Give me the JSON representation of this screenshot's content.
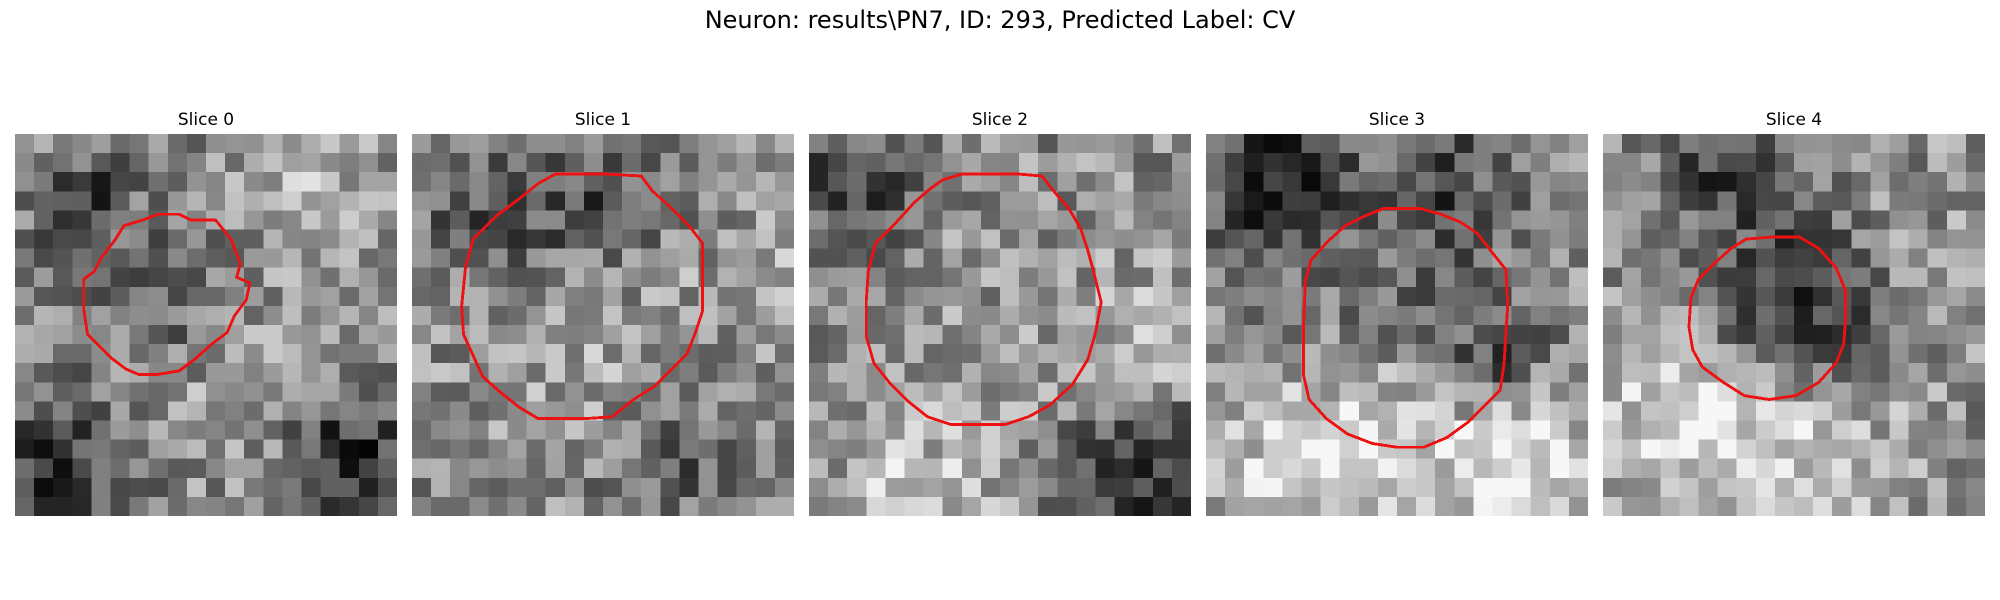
{
  "figure": {
    "title": "Neuron: results\\PN7, ID: 293, Predicted Label: CV"
  },
  "contour_color": "#ee1111",
  "slices": [
    {
      "label": "Slice 0",
      "contour": [
        [
          4.15,
          7.2
        ],
        [
          4.5,
          6.5
        ],
        [
          5.2,
          5.6
        ],
        [
          5.7,
          4.8
        ],
        [
          6.7,
          4.5
        ],
        [
          7.5,
          4.2
        ],
        [
          8.6,
          4.2
        ],
        [
          9.2,
          4.5
        ],
        [
          10.5,
          4.5
        ],
        [
          11.3,
          5.5
        ],
        [
          11.8,
          6.8
        ],
        [
          11.6,
          7.5
        ],
        [
          12.3,
          7.8
        ],
        [
          12.1,
          8.7
        ],
        [
          11.5,
          9.5
        ],
        [
          11.1,
          10.4
        ],
        [
          10.3,
          11.0
        ],
        [
          9.4,
          11.8
        ],
        [
          8.6,
          12.4
        ],
        [
          7.4,
          12.6
        ],
        [
          6.5,
          12.6
        ],
        [
          5.8,
          12.3
        ],
        [
          5.0,
          11.7
        ],
        [
          4.3,
          11.0
        ],
        [
          3.8,
          10.5
        ],
        [
          3.6,
          9.2
        ],
        [
          3.6,
          7.6
        ]
      ]
    },
    {
      "label": "Slice 1",
      "contour": [
        [
          2.8,
          7.0
        ],
        [
          3.2,
          5.5
        ],
        [
          4.4,
          4.3
        ],
        [
          5.6,
          3.4
        ],
        [
          6.6,
          2.6
        ],
        [
          7.5,
          2.1
        ],
        [
          10.2,
          2.1
        ],
        [
          12.0,
          2.2
        ],
        [
          12.6,
          3.0
        ],
        [
          13.5,
          3.8
        ],
        [
          14.5,
          4.8
        ],
        [
          15.2,
          5.7
        ],
        [
          15.2,
          7.4
        ],
        [
          15.2,
          9.3
        ],
        [
          14.8,
          10.5
        ],
        [
          14.4,
          11.5
        ],
        [
          13.6,
          12.3
        ],
        [
          12.7,
          13.2
        ],
        [
          11.6,
          13.9
        ],
        [
          10.5,
          14.8
        ],
        [
          9.1,
          14.9
        ],
        [
          7.8,
          14.9
        ],
        [
          6.6,
          14.9
        ],
        [
          5.6,
          14.3
        ],
        [
          4.6,
          13.5
        ],
        [
          3.7,
          12.7
        ],
        [
          3.2,
          11.6
        ],
        [
          2.7,
          10.5
        ],
        [
          2.6,
          9.0
        ]
      ]
    },
    {
      "label": "Slice 2",
      "contour": [
        [
          3.1,
          7.2
        ],
        [
          3.5,
          5.7
        ],
        [
          4.5,
          4.7
        ],
        [
          5.5,
          3.6
        ],
        [
          6.3,
          2.9
        ],
        [
          7.0,
          2.4
        ],
        [
          8.0,
          2.1
        ],
        [
          11.0,
          2.1
        ],
        [
          12.2,
          2.2
        ],
        [
          12.9,
          3.1
        ],
        [
          13.6,
          3.9
        ],
        [
          14.2,
          4.9
        ],
        [
          14.6,
          6.1
        ],
        [
          14.9,
          7.2
        ],
        [
          15.3,
          8.8
        ],
        [
          15.0,
          10.4
        ],
        [
          14.6,
          11.8
        ],
        [
          13.8,
          13.1
        ],
        [
          12.6,
          14.2
        ],
        [
          11.5,
          14.8
        ],
        [
          10.3,
          15.2
        ],
        [
          8.7,
          15.2
        ],
        [
          7.4,
          15.2
        ],
        [
          6.2,
          14.8
        ],
        [
          5.2,
          14.0
        ],
        [
          4.2,
          13.0
        ],
        [
          3.4,
          12.0
        ],
        [
          3.0,
          10.6
        ],
        [
          3.0,
          8.7
        ]
      ]
    },
    {
      "label": "Slice 3",
      "contour": [
        [
          5.2,
          7.7
        ],
        [
          5.5,
          6.6
        ],
        [
          6.4,
          5.6
        ],
        [
          7.3,
          4.8
        ],
        [
          8.3,
          4.3
        ],
        [
          9.3,
          3.9
        ],
        [
          11.2,
          3.9
        ],
        [
          12.3,
          4.2
        ],
        [
          13.3,
          4.6
        ],
        [
          14.2,
          5.2
        ],
        [
          14.9,
          6.1
        ],
        [
          15.7,
          7.1
        ],
        [
          15.8,
          8.9
        ],
        [
          15.7,
          10.5
        ],
        [
          15.6,
          12.1
        ],
        [
          15.4,
          13.4
        ],
        [
          14.6,
          14.2
        ],
        [
          13.7,
          15.1
        ],
        [
          12.6,
          15.9
        ],
        [
          11.4,
          16.4
        ],
        [
          10.0,
          16.4
        ],
        [
          8.7,
          16.2
        ],
        [
          7.4,
          15.7
        ],
        [
          6.3,
          14.9
        ],
        [
          5.4,
          13.9
        ],
        [
          5.1,
          12.6
        ],
        [
          5.1,
          10.3
        ]
      ]
    },
    {
      "label": "Slice 4",
      "contour": [
        [
          4.6,
          8.6
        ],
        [
          5.0,
          7.6
        ],
        [
          5.8,
          6.8
        ],
        [
          6.7,
          6.0
        ],
        [
          7.5,
          5.5
        ],
        [
          8.8,
          5.4
        ],
        [
          10.3,
          5.4
        ],
        [
          11.3,
          6.0
        ],
        [
          12.2,
          7.0
        ],
        [
          12.7,
          8.2
        ],
        [
          12.7,
          9.7
        ],
        [
          12.6,
          11.0
        ],
        [
          12.2,
          12.0
        ],
        [
          11.3,
          13.0
        ],
        [
          10.1,
          13.7
        ],
        [
          8.7,
          13.9
        ],
        [
          7.4,
          13.7
        ],
        [
          6.3,
          13.0
        ],
        [
          5.2,
          12.2
        ],
        [
          4.7,
          11.3
        ],
        [
          4.5,
          10.1
        ]
      ]
    }
  ]
}
